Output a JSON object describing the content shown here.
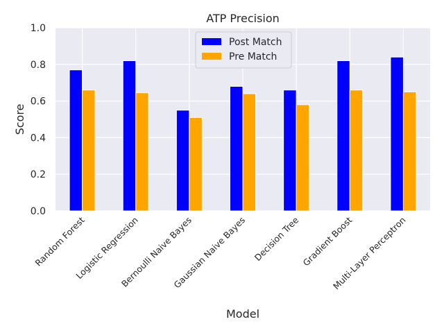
{
  "chart_data": {
    "type": "bar",
    "title": "ATP Precision",
    "xlabel": "Model",
    "ylabel": "Score",
    "ylim": [
      0,
      1.0
    ],
    "yticks": [
      "0.0",
      "0.2",
      "0.4",
      "0.6",
      "0.8",
      "1.0"
    ],
    "ytick_values": [
      0,
      0.2,
      0.4,
      0.6,
      0.8,
      1.0
    ],
    "grid": true,
    "legend_position": "top-center",
    "categories": [
      "Random Forest",
      "Logistic Regression",
      "Bernoulli Naive Bayes",
      "Gaussian Naive Bayes",
      "Decision Tree",
      "Gradient Boost",
      "Multi-Layer Perceptron"
    ],
    "series": [
      {
        "name": "Post Match",
        "color": "#0000ff",
        "values": [
          0.77,
          0.82,
          0.55,
          0.68,
          0.66,
          0.82,
          0.84
        ]
      },
      {
        "name": "Pre Match",
        "color": "#ffa500",
        "values": [
          0.66,
          0.645,
          0.51,
          0.64,
          0.58,
          0.66,
          0.65
        ]
      }
    ],
    "background_color": "#eaeaf2",
    "grid_color": "#ffffff"
  }
}
